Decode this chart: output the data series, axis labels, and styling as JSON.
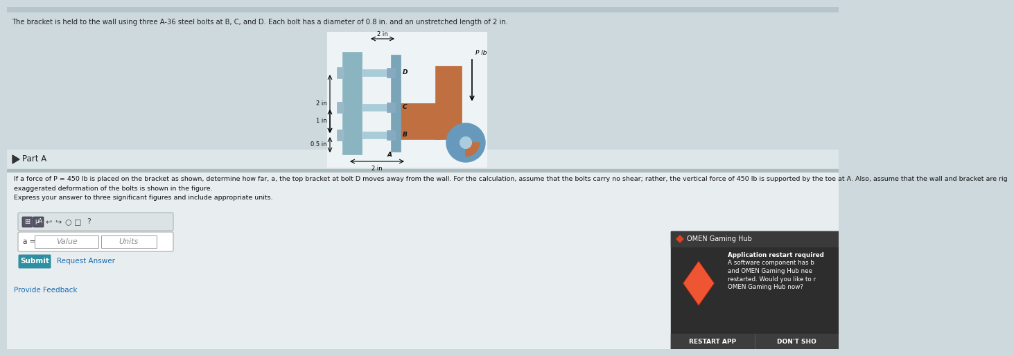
{
  "header_text": "The bracket is held to the wall using three A-36 steel bolts at B, C, and D. Each bolt has a diameter of 0.8 in. and an unstretched length of 2 in.",
  "part_label": "Part A",
  "prob_line1": "If a force of P = 450 lb is placed on the bracket as shown, determine how far, a, the top bracket at bolt D moves away from the wall. For the calculation, assume that the bolts carry no shear; rather, the vertical force of 450 lb is supported by the toe at A. Also, assume that the wall and bracket are rig",
  "prob_line2": "exaggerated deformation of the bolts is shown in the figure.",
  "express_text": "Express your answer to three significant figures and include appropriate units.",
  "value_placeholder": "Value",
  "units_placeholder": "Units",
  "submit_text": "Submit",
  "request_text": "Request Answer",
  "feedback_text": "Provide Feedback",
  "omen_title": "OMEN Gaming Hub",
  "omen_line1": "Application restart required",
  "omen_line2": "A software component has b",
  "omen_line3": "and OMEN Gaming Hub nee",
  "omen_line4": "restarted. Would you like to r",
  "omen_line5": "OMEN Gaming Hub now?",
  "restart_text": "RESTART APP",
  "dont_text": "DON'T SHO",
  "page_bg": "#cdd9dd",
  "top_strip_color": "#b5c5ca",
  "white_section_bg": "#e8eef0",
  "content_bg": "#e2eaec",
  "diagram_bg": "#dde8eb",
  "diagram_inner_bg": "#eef4f6",
  "toolbar_bg": "#dce3e5",
  "toolbar_border": "#aab5b8",
  "input_bg": "#ffffff",
  "input_border": "#aaaaaa",
  "submit_color": "#2d8fa0",
  "submit_text_color": "#ffffff",
  "link_color": "#1a6bb5",
  "omen_bg": "#2d2d2d",
  "omen_titlebar": "#3a3a3a",
  "omen_btn_bg": "#3d3d3d",
  "omen_btn_border": "#555555",
  "omen_text_color": "#ffffff",
  "omen_diamond_top": "#ff6644",
  "omen_diamond_bot": "#cc3311",
  "omen_small_diamond": "#dd4422"
}
